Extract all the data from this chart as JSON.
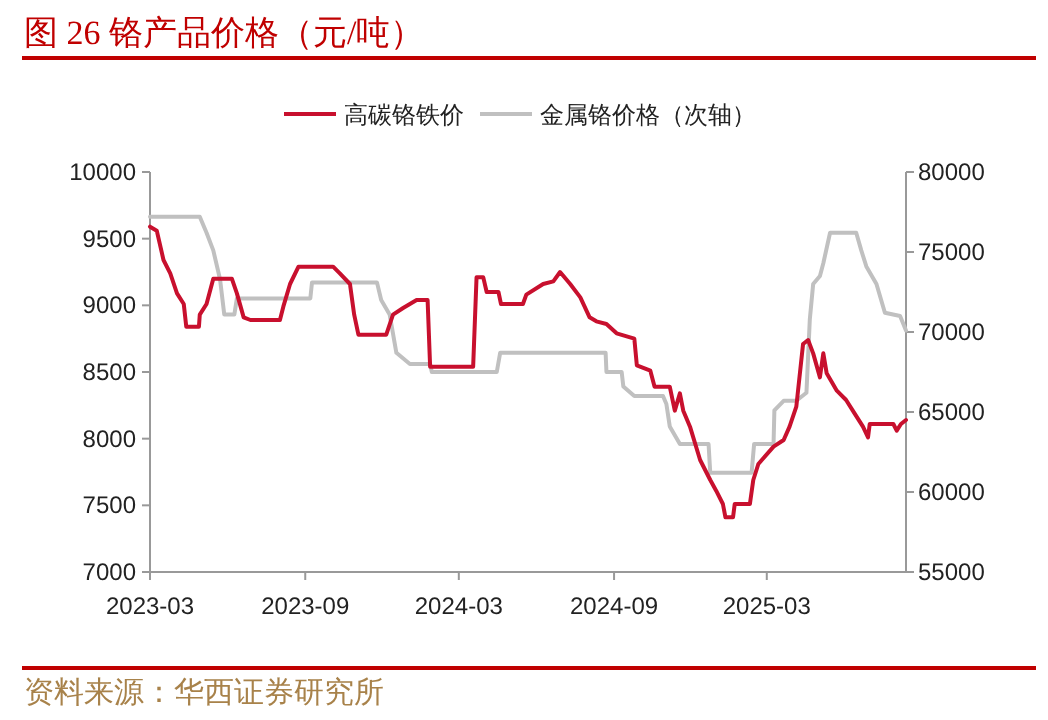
{
  "chart_data": {
    "type": "line",
    "title": "图 26 铬产品价格（元/吨）",
    "annotations": [
      "资料来源：华西证券研究所"
    ],
    "legend": "top",
    "xlim": [
      "2023-03-01",
      "2025-08-13"
    ],
    "xticks": [
      "2023-03",
      "2023-09",
      "2024-03",
      "2024-09",
      "2025-03"
    ],
    "ylim": [
      7000,
      10000
    ],
    "yticks": [
      7000,
      7500,
      8000,
      8500,
      9000,
      9500,
      10000
    ],
    "y2lim": [
      55000,
      80000
    ],
    "y2ticks": [
      55000,
      60000,
      65000,
      70000,
      75000,
      80000
    ],
    "series": [
      {
        "name": "高碳铬铁价",
        "color": "#c8102e",
        "x": [
          "2023-03-01",
          "2023-03-09",
          "2023-03-17",
          "2023-03-25",
          "2023-04-02",
          "2023-04-10",
          "2023-04-13",
          "2023-04-28",
          "2023-04-29",
          "2023-05-07",
          "2023-05-15",
          "2023-06-06",
          "2023-06-12",
          "2023-06-20",
          "2023-06-28",
          "2023-08-02",
          "2023-08-06",
          "2023-08-14",
          "2023-08-24",
          "2023-10-04",
          "2023-10-12",
          "2023-10-24",
          "2023-10-29",
          "2023-11-03",
          "2023-12-06",
          "2023-12-14",
          "2023-12-26",
          "2024-01-11",
          "2024-01-24",
          "2024-01-27",
          "2024-03-18",
          "2024-03-22",
          "2024-03-30",
          "2024-04-03",
          "2024-04-17",
          "2024-04-20",
          "2024-05-16",
          "2024-05-20",
          "2024-06-09",
          "2024-06-21",
          "2024-06-29",
          "2024-07-11",
          "2024-07-23",
          "2024-08-03",
          "2024-08-11",
          "2024-08-23",
          "2024-09-04",
          "2024-09-25",
          "2024-09-28",
          "2024-10-14",
          "2024-10-19",
          "2024-11-06",
          "2024-11-12",
          "2024-11-18",
          "2024-11-22",
          "2024-11-30",
          "2024-12-12",
          "2024-12-24",
          "2024-12-31",
          "2025-01-08",
          "2025-01-11",
          "2025-01-20",
          "2025-01-22",
          "2025-02-09",
          "2025-02-13",
          "2025-02-19",
          "2025-03-09",
          "2025-03-21",
          "2025-03-28",
          "2025-04-05",
          "2025-04-13",
          "2025-04-19",
          "2025-04-25",
          "2025-05-03",
          "2025-05-07",
          "2025-05-11",
          "2025-05-23",
          "2025-06-03",
          "2025-06-13",
          "2025-06-23",
          "2025-06-29",
          "2025-07-01",
          "2025-07-29",
          "2025-08-02",
          "2025-08-07",
          "2025-08-13"
        ],
        "values": [
          9590,
          9560,
          9340,
          9240,
          9090,
          9010,
          8840,
          8840,
          8930,
          9010,
          9200,
          9200,
          9090,
          8910,
          8890,
          8890,
          8990,
          9160,
          9290,
          9290,
          9240,
          9160,
          8930,
          8780,
          8780,
          8930,
          8980,
          9040,
          9040,
          8540,
          8540,
          9210,
          9210,
          9100,
          9100,
          9010,
          9010,
          9080,
          9160,
          9180,
          9250,
          9160,
          9060,
          8910,
          8880,
          8860,
          8790,
          8750,
          8550,
          8510,
          8390,
          8390,
          8210,
          8340,
          8210,
          8090,
          7840,
          7690,
          7610,
          7510,
          7410,
          7410,
          7510,
          7510,
          7690,
          7810,
          7940,
          7990,
          8090,
          8240,
          8710,
          8740,
          8640,
          8460,
          8640,
          8490,
          8360,
          8290,
          8190,
          8090,
          8010,
          8110,
          8110,
          8060,
          8110,
          8140
        ]
      },
      {
        "name": "金属铬价格（次轴）",
        "color": "#c0c0c0",
        "axis": "y2",
        "x": [
          "2023-03-01",
          "2023-04-29",
          "2023-05-07",
          "2023-05-15",
          "2023-05-23",
          "2023-05-28",
          "2023-06-09",
          "2023-06-12",
          "2023-09-07",
          "2023-09-09",
          "2023-11-25",
          "2023-11-30",
          "2023-12-10",
          "2023-12-18",
          "2024-01-03",
          "2024-01-27",
          "2024-01-29",
          "2024-04-15",
          "2024-04-19",
          "2024-08-22",
          "2024-08-23",
          "2024-09-10",
          "2024-09-12",
          "2024-09-25",
          "2024-10-29",
          "2024-11-02",
          "2024-11-06",
          "2024-11-18",
          "2024-12-22",
          "2024-12-24",
          "2025-02-11",
          "2025-02-14",
          "2025-03-09",
          "2025-03-10",
          "2025-03-21",
          "2025-04-05",
          "2025-04-17",
          "2025-04-21",
          "2025-04-25",
          "2025-05-03",
          "2025-05-07",
          "2025-05-15",
          "2025-06-15",
          "2025-06-21",
          "2025-06-27",
          "2025-07-09",
          "2025-07-19",
          "2025-08-06",
          "2025-08-13"
        ],
        "values": [
          77200,
          77200,
          76200,
          75100,
          73300,
          71100,
          71100,
          72100,
          72100,
          73100,
          73100,
          72000,
          71100,
          68700,
          68000,
          68000,
          67500,
          67500,
          68700,
          68700,
          67500,
          67500,
          66600,
          66000,
          66000,
          65500,
          64100,
          63000,
          63000,
          61200,
          61200,
          63000,
          63000,
          65100,
          65700,
          65700,
          66200,
          70800,
          73000,
          73500,
          74300,
          76200,
          76200,
          75100,
          74100,
          73000,
          71200,
          71000,
          70100
        ]
      }
    ]
  }
}
